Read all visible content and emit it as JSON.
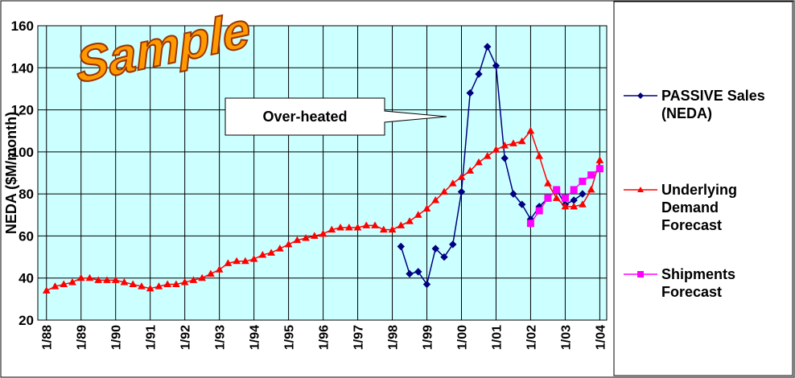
{
  "chart_data": {
    "type": "line",
    "watermark": "Sample",
    "ylabel": "NEDA ($M/month)",
    "annotation": "Over-heated",
    "x": [
      1988,
      1988.25,
      1988.5,
      1988.75,
      1989,
      1989.25,
      1989.5,
      1989.75,
      1990,
      1990.25,
      1990.5,
      1990.75,
      1991,
      1991.25,
      1991.5,
      1991.75,
      1992,
      1992.25,
      1992.5,
      1992.75,
      1993,
      1993.25,
      1993.5,
      1993.75,
      1994,
      1994.25,
      1994.5,
      1994.75,
      1995,
      1995.25,
      1995.5,
      1995.75,
      1996,
      1996.25,
      1996.5,
      1996.75,
      1997,
      1997.25,
      1997.5,
      1997.75,
      1998,
      1998.25,
      1998.5,
      1998.75,
      1999,
      1999.25,
      1999.5,
      1999.75,
      2000,
      2000.25,
      2000.5,
      2000.75,
      2001,
      2001.25,
      2001.5,
      2001.75,
      2002,
      2002.25,
      2002.5,
      2002.75,
      2003,
      2003.25,
      2003.5,
      2003.75,
      2004
    ],
    "series": [
      {
        "name": "PASSIVE Sales (NEDA)",
        "color": "#000080",
        "marker": "diamond",
        "values": [
          null,
          null,
          null,
          null,
          null,
          null,
          null,
          null,
          null,
          null,
          null,
          null,
          null,
          null,
          null,
          null,
          null,
          null,
          null,
          null,
          null,
          null,
          null,
          null,
          null,
          null,
          null,
          null,
          null,
          null,
          null,
          null,
          null,
          null,
          null,
          null,
          null,
          null,
          null,
          null,
          null,
          55,
          42,
          43,
          37,
          54,
          50,
          56,
          81,
          128,
          137,
          150,
          141,
          97,
          80,
          75,
          68,
          74,
          78,
          82,
          75,
          77,
          80,
          null,
          null
        ]
      },
      {
        "name": "Underlying Demand Forecast",
        "color": "#ff0000",
        "marker": "triangle",
        "values": [
          34,
          36,
          37,
          38,
          40,
          40,
          39,
          39,
          39,
          38,
          37,
          36,
          35,
          36,
          37,
          37,
          38,
          39,
          40,
          42,
          44,
          47,
          48,
          48,
          49,
          51,
          52,
          54,
          56,
          58,
          59,
          60,
          61,
          63,
          64,
          64,
          64,
          65,
          65,
          63,
          63,
          65,
          67,
          70,
          73,
          77,
          81,
          85,
          88,
          91,
          95,
          98,
          101,
          103,
          104,
          105,
          110,
          98,
          85,
          78,
          74,
          74,
          75,
          82,
          96
        ]
      },
      {
        "name": "Shipments Forecast",
        "color": "#ff00ff",
        "marker": "square",
        "values": [
          null,
          null,
          null,
          null,
          null,
          null,
          null,
          null,
          null,
          null,
          null,
          null,
          null,
          null,
          null,
          null,
          null,
          null,
          null,
          null,
          null,
          null,
          null,
          null,
          null,
          null,
          null,
          null,
          null,
          null,
          null,
          null,
          null,
          null,
          null,
          null,
          null,
          null,
          null,
          null,
          null,
          null,
          null,
          null,
          null,
          null,
          null,
          null,
          null,
          null,
          null,
          null,
          null,
          null,
          null,
          null,
          66,
          72,
          78,
          82,
          78,
          82,
          86,
          89,
          92
        ]
      }
    ],
    "xlim": [
      1987.75,
      2004.2
    ],
    "xticks": [
      {
        "value": 1988,
        "label": "1/88"
      },
      {
        "value": 1989,
        "label": "1/89"
      },
      {
        "value": 1990,
        "label": "1/90"
      },
      {
        "value": 1991,
        "label": "1/91"
      },
      {
        "value": 1992,
        "label": "1/92"
      },
      {
        "value": 1993,
        "label": "1/93"
      },
      {
        "value": 1994,
        "label": "1/94"
      },
      {
        "value": 1995,
        "label": "1/95"
      },
      {
        "value": 1996,
        "label": "1/96"
      },
      {
        "value": 1997,
        "label": "1/97"
      },
      {
        "value": 1998,
        "label": "1/98"
      },
      {
        "value": 1999,
        "label": "1/99"
      },
      {
        "value": 2000,
        "label": "1/00"
      },
      {
        "value": 2001,
        "label": "1/01"
      },
      {
        "value": 2002,
        "label": "1/02"
      },
      {
        "value": 2003,
        "label": "1/03"
      },
      {
        "value": 2004,
        "label": "1/04"
      }
    ],
    "ylim": [
      20,
      160
    ],
    "yticks": [
      20,
      40,
      60,
      80,
      100,
      120,
      140,
      160
    ],
    "grid": true,
    "legend": "right"
  }
}
